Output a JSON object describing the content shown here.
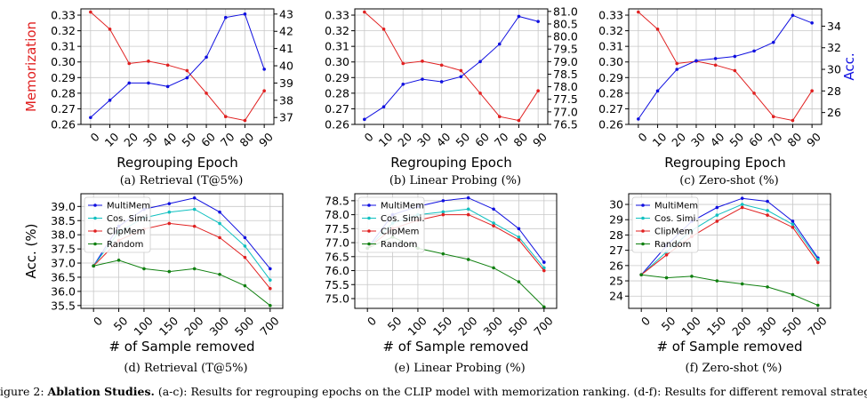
{
  "chart_data": [
    {
      "type": "line",
      "caption": "(a) Retrieval (T@5%)",
      "xlabel": "Regrouping Epoch",
      "ylabel_left": "Memorization",
      "ylabel_right": "",
      "x": [
        0,
        10,
        20,
        30,
        40,
        50,
        60,
        70,
        80,
        90
      ],
      "x_ticks": [
        "0",
        "10",
        "20",
        "30",
        "40",
        "50",
        "60",
        "70",
        "80",
        "90"
      ],
      "ylim_left": [
        0.26,
        0.334
      ],
      "ylim_right": [
        36.6,
        43.3
      ],
      "yticks_left": [
        "0.26",
        "0.27",
        "0.28",
        "0.29",
        "0.30",
        "0.31",
        "0.32",
        "0.33"
      ],
      "yticks_left_values": [
        0.26,
        0.27,
        0.28,
        0.29,
        0.3,
        0.31,
        0.32,
        0.33
      ],
      "yticks_right": [
        "37",
        "38",
        "39",
        "40",
        "41",
        "42",
        "43"
      ],
      "yticks_right_values": [
        37,
        38,
        39,
        40,
        41,
        42,
        43
      ],
      "grid": true,
      "series": [
        {
          "axis": "left",
          "color": "#e02020",
          "values": [
            0.332,
            0.321,
            0.299,
            0.3005,
            0.298,
            0.2945,
            0.28,
            0.265,
            0.2625,
            0.2815
          ]
        },
        {
          "axis": "right",
          "color": "#1010e0",
          "values": [
            37.0,
            38.0,
            39.0,
            39.0,
            38.8,
            39.3,
            40.5,
            42.8,
            43.0,
            39.8
          ]
        }
      ]
    },
    {
      "type": "line",
      "caption": "(b) Linear Probing (%)",
      "xlabel": "Regrouping Epoch",
      "ylabel_left": "",
      "ylabel_right": "",
      "x": [
        0,
        10,
        20,
        30,
        40,
        50,
        60,
        70,
        80,
        90
      ],
      "x_ticks": [
        "0",
        "10",
        "20",
        "30",
        "40",
        "50",
        "60",
        "70",
        "80",
        "90"
      ],
      "ylim_left": [
        0.26,
        0.334
      ],
      "ylim_right": [
        76.5,
        81.1
      ],
      "yticks_left": [
        "0.26",
        "0.27",
        "0.28",
        "0.29",
        "0.30",
        "0.31",
        "0.32",
        "0.33"
      ],
      "yticks_left_values": [
        0.26,
        0.27,
        0.28,
        0.29,
        0.3,
        0.31,
        0.32,
        0.33
      ],
      "yticks_right": [
        "76.5",
        "77.0",
        "77.5",
        "78.0",
        "78.5",
        "79.0",
        "79.5",
        "80.0",
        "80.5",
        "81.0"
      ],
      "yticks_right_values": [
        76.5,
        77.0,
        77.5,
        78.0,
        78.5,
        79.0,
        79.5,
        80.0,
        80.5,
        81.0
      ],
      "grid": true,
      "series": [
        {
          "axis": "left",
          "color": "#e02020",
          "values": [
            0.332,
            0.321,
            0.299,
            0.3005,
            0.298,
            0.2945,
            0.28,
            0.265,
            0.2625,
            0.2815
          ]
        },
        {
          "axis": "right",
          "color": "#1010e0",
          "values": [
            76.7,
            77.2,
            78.1,
            78.3,
            78.2,
            78.4,
            79.0,
            79.7,
            80.8,
            80.6
          ]
        }
      ]
    },
    {
      "type": "line",
      "caption": "(c) Zero-shot (%)",
      "xlabel": "Regrouping Epoch",
      "ylabel_left": "",
      "ylabel_right": "Acc.",
      "x": [
        0,
        10,
        20,
        30,
        40,
        50,
        60,
        70,
        80,
        90
      ],
      "x_ticks": [
        "0",
        "10",
        "20",
        "30",
        "40",
        "50",
        "60",
        "70",
        "80",
        "90"
      ],
      "ylim_left": [
        0.26,
        0.334
      ],
      "ylim_right": [
        24.9,
        35.6
      ],
      "yticks_left": [
        "0.26",
        "0.27",
        "0.28",
        "0.29",
        "0.30",
        "0.31",
        "0.32",
        "0.33"
      ],
      "yticks_left_values": [
        0.26,
        0.27,
        0.28,
        0.29,
        0.3,
        0.31,
        0.32,
        0.33
      ],
      "yticks_right": [
        "26",
        "28",
        "30",
        "32",
        "34"
      ],
      "yticks_right_values": [
        26,
        28,
        30,
        32,
        34
      ],
      "grid": true,
      "series": [
        {
          "axis": "left",
          "color": "#e02020",
          "values": [
            0.332,
            0.321,
            0.299,
            0.3005,
            0.298,
            0.2945,
            0.28,
            0.265,
            0.2625,
            0.2815
          ]
        },
        {
          "axis": "right",
          "color": "#1010e0",
          "values": [
            25.4,
            28.0,
            30.0,
            30.8,
            31.0,
            31.2,
            31.7,
            32.5,
            35.0,
            34.3
          ]
        }
      ]
    },
    {
      "type": "line",
      "caption": "(d) Retrieval (T@5%)",
      "xlabel": "# of Sample removed",
      "ylabel_left": "Acc. (%)",
      "ylabel_right": "",
      "x": [
        0,
        50,
        100,
        150,
        200,
        300,
        500,
        700
      ],
      "x_ticks": [
        "0",
        "50",
        "100",
        "150",
        "200",
        "300",
        "500",
        "700"
      ],
      "ylim_left": [
        35.4,
        39.45
      ],
      "yticks_left": [
        "35.5",
        "36.0",
        "36.5",
        "37.0",
        "37.5",
        "38.0",
        "38.5",
        "39.0"
      ],
      "yticks_left_values": [
        35.5,
        36.0,
        36.5,
        37.0,
        37.5,
        38.0,
        38.5,
        39.0
      ],
      "grid": true,
      "legend": "top-left",
      "series": [
        {
          "name": "MultiMem",
          "axis": "left",
          "color": "#1010e0",
          "values": [
            36.9,
            38.3,
            38.9,
            39.1,
            39.3,
            38.8,
            37.9,
            36.8
          ]
        },
        {
          "name": "Cos. Simi.",
          "axis": "left",
          "color": "#10c0c0",
          "values": [
            36.9,
            38.1,
            38.6,
            38.8,
            38.9,
            38.4,
            37.6,
            36.4
          ]
        },
        {
          "name": "ClipMem",
          "axis": "left",
          "color": "#e02020",
          "values": [
            36.9,
            37.8,
            38.2,
            38.4,
            38.3,
            37.9,
            37.2,
            36.1
          ]
        },
        {
          "name": "Random",
          "axis": "left",
          "color": "#108010",
          "values": [
            36.9,
            37.1,
            36.8,
            36.7,
            36.8,
            36.6,
            36.2,
            35.5
          ]
        }
      ]
    },
    {
      "type": "line",
      "caption": "(e) Linear Probing (%)",
      "xlabel": "# of Sample removed",
      "ylabel_left": "",
      "ylabel_right": "",
      "x": [
        0,
        50,
        100,
        150,
        200,
        300,
        500,
        700
      ],
      "x_ticks": [
        "0",
        "50",
        "100",
        "150",
        "200",
        "300",
        "500",
        "700"
      ],
      "ylim_left": [
        74.65,
        78.75
      ],
      "yticks_left": [
        "75.0",
        "75.5",
        "76.0",
        "76.5",
        "77.0",
        "77.5",
        "78.0",
        "78.5"
      ],
      "yticks_left_values": [
        75.0,
        75.5,
        76.0,
        76.5,
        77.0,
        77.5,
        78.0,
        78.5
      ],
      "grid": true,
      "legend": "top-left",
      "series": [
        {
          "name": "MultiMem",
          "axis": "left",
          "color": "#1010e0",
          "values": [
            76.8,
            78.0,
            78.3,
            78.5,
            78.6,
            78.2,
            77.5,
            76.3
          ]
        },
        {
          "name": "Cos. Simi.",
          "axis": "left",
          "color": "#10c0c0",
          "values": [
            76.8,
            77.7,
            78.0,
            78.1,
            78.2,
            77.7,
            77.2,
            76.1
          ]
        },
        {
          "name": "ClipMem",
          "axis": "left",
          "color": "#e02020",
          "values": [
            76.8,
            77.5,
            77.8,
            78.0,
            78.0,
            77.6,
            77.1,
            76.0
          ]
        },
        {
          "name": "Random",
          "axis": "left",
          "color": "#108010",
          "values": [
            76.8,
            77.2,
            76.8,
            76.6,
            76.4,
            76.1,
            75.6,
            74.7
          ]
        }
      ]
    },
    {
      "type": "line",
      "caption": "(f) Zero-shot (%)",
      "xlabel": "# of Sample removed",
      "ylabel_left": "",
      "ylabel_right": "",
      "x": [
        0,
        50,
        100,
        150,
        200,
        300,
        500,
        700
      ],
      "x_ticks": [
        "0",
        "50",
        "100",
        "150",
        "200",
        "300",
        "500",
        "700"
      ],
      "ylim_left": [
        23.2,
        30.7
      ],
      "yticks_left": [
        "24",
        "25",
        "26",
        "27",
        "28",
        "29",
        "30"
      ],
      "yticks_left_values": [
        24,
        25,
        26,
        27,
        28,
        29,
        30
      ],
      "grid": true,
      "legend": "top-left",
      "series": [
        {
          "name": "MultiMem",
          "axis": "left",
          "color": "#1010e0",
          "values": [
            25.4,
            27.3,
            28.9,
            29.8,
            30.4,
            30.2,
            28.9,
            26.5
          ]
        },
        {
          "name": "Cos. Simi.",
          "axis": "left",
          "color": "#10c0c0",
          "values": [
            25.4,
            26.9,
            28.3,
            29.3,
            30.0,
            29.6,
            28.7,
            26.4
          ]
        },
        {
          "name": "ClipMem",
          "axis": "left",
          "color": "#e02020",
          "values": [
            25.4,
            26.7,
            27.9,
            28.9,
            29.8,
            29.3,
            28.5,
            26.2
          ]
        },
        {
          "name": "Random",
          "axis": "left",
          "color": "#108010",
          "values": [
            25.4,
            25.2,
            25.3,
            25.0,
            24.8,
            24.6,
            24.1,
            23.4
          ]
        }
      ]
    }
  ],
  "figure_caption": {
    "prefix": "igure 2: ",
    "bold": "Ablation Studies.",
    "rest": " (a-c): Results for regrouping epochs on the CLIP model with memorization ranking. (d-f): Results for different removal strategies with varying numbers of samples removed."
  }
}
